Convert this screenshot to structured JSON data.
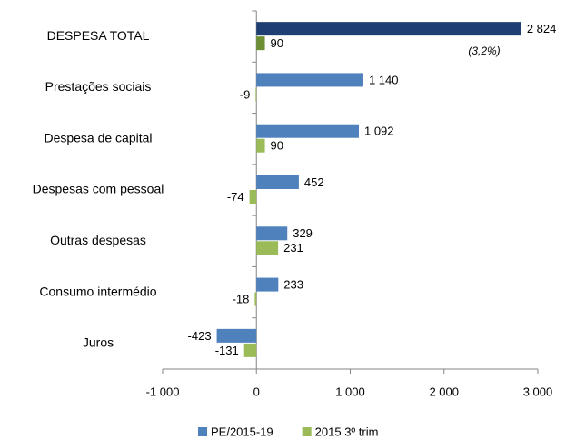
{
  "chart_data": {
    "type": "bar",
    "orientation": "horizontal",
    "categories": [
      "DESPESA TOTAL",
      "Prestações sociais",
      "Despesa de capital",
      "Despesas com pessoal",
      "Outras despesas",
      "Consumo intermédio",
      "Juros"
    ],
    "series": [
      {
        "name": "PE/2015-19",
        "color": "#4f81bd",
        "colors": [
          "#1f3f73",
          "#4f81bd",
          "#4f81bd",
          "#4f81bd",
          "#4f81bd",
          "#4f81bd",
          "#4f81bd"
        ],
        "values": [
          2824,
          1140,
          1092,
          452,
          329,
          233,
          -423
        ],
        "value_labels": [
          "2 824",
          "1 140",
          "1 092",
          "452",
          "329",
          "233",
          "-423"
        ]
      },
      {
        "name": "2015 3º trim",
        "color": "#9bbb59",
        "colors": [
          "#6e8f34",
          "#9bbb59",
          "#9bbb59",
          "#9bbb59",
          "#9bbb59",
          "#9bbb59",
          "#9bbb59"
        ],
        "values": [
          90,
          -9,
          90,
          -74,
          231,
          -18,
          -131
        ],
        "value_labels": [
          "90",
          "-9",
          "90",
          "-74",
          "231",
          "-18",
          "-131"
        ]
      }
    ],
    "annotations": [
      "(3,2%)"
    ],
    "xlim": [
      -1000,
      3000
    ],
    "xticks": [
      {
        "value": -1000,
        "label": "-1 000"
      },
      0,
      {
        "value": 1000,
        "label": "1 000"
      },
      {
        "value": 2000,
        "label": "2 000"
      },
      {
        "value": 3000,
        "label": "3 000"
      }
    ],
    "legend": "bottom"
  }
}
